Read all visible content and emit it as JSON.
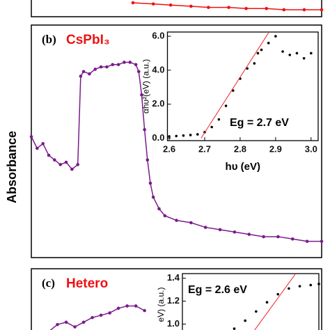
{
  "chart_data": [
    {
      "type": "line",
      "color": "#ee1111",
      "xlim": [
        0,
        1
      ],
      "ylim": [
        0,
        1
      ],
      "x": [
        0.35,
        0.42,
        0.48,
        0.55,
        0.61,
        0.68,
        0.74,
        0.81,
        0.87,
        0.94,
        1.0
      ],
      "values": [
        0.06,
        0.055,
        0.05,
        0.045,
        0.04,
        0.04,
        0.035,
        0.035,
        0.03,
        0.03,
        0.03
      ]
    },
    {
      "type": "line",
      "panel": "(b)",
      "title": "CsPbI₃",
      "ylabel": "Absorbance",
      "color": "#7b1a8c",
      "xlim": [
        0,
        1
      ],
      "ylim": [
        0,
        1
      ],
      "x": [
        0,
        0.02,
        0.04,
        0.06,
        0.08,
        0.1,
        0.12,
        0.14,
        0.16,
        0.17,
        0.18,
        0.2,
        0.22,
        0.24,
        0.26,
        0.28,
        0.3,
        0.32,
        0.34,
        0.36,
        0.37,
        0.38,
        0.39,
        0.4,
        0.41,
        0.42,
        0.44,
        0.46,
        0.5,
        0.55,
        0.6,
        0.65,
        0.7,
        0.75,
        0.8,
        0.85,
        0.9,
        0.95,
        1.0
      ],
      "values": [
        0.52,
        0.47,
        0.49,
        0.44,
        0.42,
        0.4,
        0.41,
        0.38,
        0.4,
        0.78,
        0.8,
        0.79,
        0.81,
        0.82,
        0.82,
        0.83,
        0.83,
        0.84,
        0.84,
        0.83,
        0.8,
        0.7,
        0.55,
        0.42,
        0.32,
        0.26,
        0.21,
        0.18,
        0.16,
        0.15,
        0.13,
        0.12,
        0.11,
        0.1,
        0.09,
        0.09,
        0.08,
        0.07,
        0.07
      ]
    },
    {
      "type": "scatter",
      "xlabel": "hυ (eV)",
      "ylabel": "αhυ²(eV) (a.u.)",
      "annotation": "Eg = 2.7 eV",
      "color": "#000000",
      "xlim": [
        2.595,
        3.02
      ],
      "ylim": [
        -0.15,
        6.25
      ],
      "xticks": [
        2.6,
        2.7,
        2.8,
        2.9,
        {
          "value": 3,
          "label": "3.0"
        }
      ],
      "yticks": [
        {
          "value": 0,
          "label": "0.0"
        },
        {
          "value": 2,
          "label": "2.0"
        },
        {
          "value": 4,
          "label": "4.0"
        },
        {
          "value": 6,
          "label": "6.0"
        }
      ],
      "x": [
        2.6,
        2.62,
        2.64,
        2.66,
        2.68,
        2.7,
        2.72,
        2.74,
        2.76,
        2.78,
        2.8,
        2.82,
        2.84,
        2.85,
        2.86,
        2.88,
        2.9,
        2.92,
        2.94,
        2.96,
        2.98,
        3.0
      ],
      "values": [
        0.1,
        0.12,
        0.15,
        0.18,
        0.22,
        0.35,
        0.65,
        1.1,
        1.9,
        2.8,
        3.5,
        4.1,
        4.4,
        5.0,
        5.2,
        5.6,
        6.0,
        5.1,
        4.9,
        5.0,
        4.7,
        5.0
      ],
      "fit": {
        "color": "#ee2222",
        "x": [
          2.69,
          2.88
        ],
        "values": [
          0,
          6.2
        ]
      }
    },
    {
      "type": "line",
      "panel": "(c)",
      "title": "Hetero",
      "color": "#7b1a8c",
      "xlim": [
        0,
        1
      ],
      "ylim": [
        0,
        1
      ],
      "x": [
        0.06,
        0.09,
        0.12,
        0.15,
        0.18,
        0.21,
        0.24,
        0.27,
        0.3,
        0.33,
        0.36,
        0.39
      ],
      "values": [
        0.73,
        0.76,
        0.77,
        0.75,
        0.77,
        0.79,
        0.8,
        0.81,
        0.83,
        0.84,
        0.84,
        0.82
      ]
    },
    {
      "type": "scatter",
      "ylabel": "eV) (a.u.)",
      "annotation": "Eg = 2.6 eV",
      "color": "#000000",
      "xlim": [
        0,
        1
      ],
      "ylim": [
        0.9,
        1.44
      ],
      "yticks": [
        {
          "value": 1.0,
          "label": "1.0"
        },
        {
          "value": 1.2,
          "label": "1.2"
        },
        {
          "value": 1.4,
          "label": "1.4"
        }
      ],
      "x": [
        0.3,
        0.38,
        0.46,
        0.54,
        0.62,
        0.7,
        0.78,
        0.86,
        0.94,
        1.0
      ],
      "values": [
        0.9,
        0.96,
        1.03,
        1.11,
        1.19,
        1.26,
        1.31,
        1.33,
        1.34,
        1.35
      ],
      "fit": {
        "color": "#ee2222",
        "x": [
          0.5,
          0.83
        ],
        "values": [
          0.9,
          1.44
        ]
      }
    }
  ]
}
